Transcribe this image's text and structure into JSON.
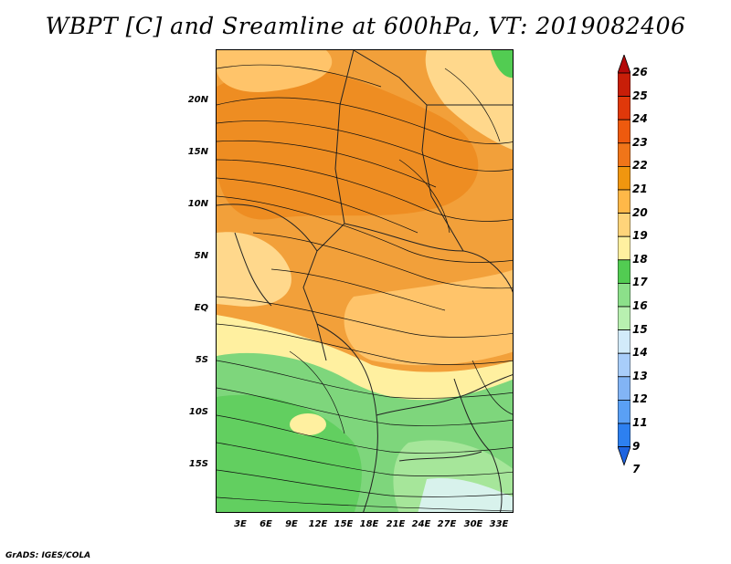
{
  "title": "WBPT [C] and Sreamline at 600hPa, VT: 2019082406",
  "credit": "GrADS: IGES/COLA",
  "lat_labels": [
    "20N",
    "15N",
    "10N",
    "5N",
    "EQ",
    "5S",
    "10S",
    "15S"
  ],
  "lon_labels": [
    "3E",
    "6E",
    "9E",
    "12E",
    "15E",
    "18E",
    "21E",
    "24E",
    "27E",
    "30E",
    "33E"
  ],
  "colorbar": {
    "labels": [
      "7",
      "9",
      "11",
      "12",
      "13",
      "14",
      "15",
      "16",
      "17",
      "18",
      "19",
      "20",
      "21",
      "22",
      "23",
      "24",
      "25",
      "26"
    ],
    "colors": [
      "#1e64e0",
      "#2d80f0",
      "#5aa0f5",
      "#82b4f5",
      "#a8cdfa",
      "#d2ebfa",
      "#b8f0b0",
      "#8ce08a",
      "#52cc52",
      "#fff0a0",
      "#ffd47a",
      "#ffb848",
      "#f0960f",
      "#f07519",
      "#ee5a0e",
      "#e0380a",
      "#c81e08",
      "#b40a0a"
    ]
  }
}
